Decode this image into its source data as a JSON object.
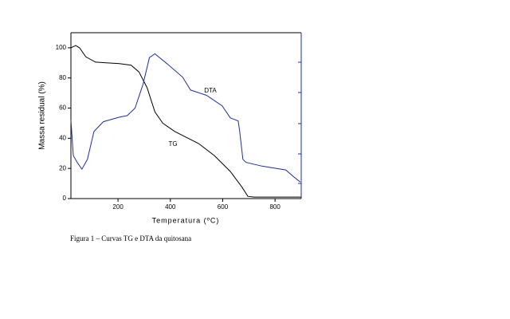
{
  "chart_data": {
    "type": "line",
    "caption": "Figura 1 – Curvas TG e DTA da quitosana",
    "xlabel": "Temperatura (ºC)",
    "ylabel": "Massa residual (%)",
    "xlim": [
      20,
      900
    ],
    "xticks": [
      200,
      400,
      600,
      800
    ],
    "ylim": [
      0,
      110
    ],
    "yticks": [
      0,
      20,
      40,
      60,
      80,
      100
    ],
    "series": [
      {
        "name": "TG",
        "color": "#000000",
        "x": [
          20,
          38,
          53,
          77,
          114,
          205,
          250,
          280,
          311,
          341,
          371,
          417,
          508,
          568,
          629,
          674,
          696,
          720,
          900
        ],
        "values": [
          100,
          101.5,
          100,
          94,
          90.5,
          89.5,
          88.5,
          84,
          73.5,
          57.5,
          50,
          44.5,
          36.5,
          28.5,
          18,
          7.5,
          1.5,
          1,
          1
        ]
      },
      {
        "name": "DTA",
        "color": "#1f2fa0",
        "x": [
          20,
          29,
          44,
          62,
          83,
          108,
          144,
          205,
          235,
          265,
          296,
          320,
          341,
          387,
          447,
          477,
          538,
          598,
          629,
          644,
          659,
          665,
          677,
          689,
          750,
          841,
          871,
          896
        ],
        "values": [
          52,
          28.5,
          24,
          19.5,
          26,
          44.5,
          51,
          54,
          55,
          60,
          76,
          93.5,
          96,
          89.5,
          80.5,
          72,
          68.5,
          61.5,
          53.5,
          52.5,
          51.5,
          44.5,
          26,
          24,
          21.5,
          19,
          14.5,
          11
        ]
      }
    ]
  }
}
